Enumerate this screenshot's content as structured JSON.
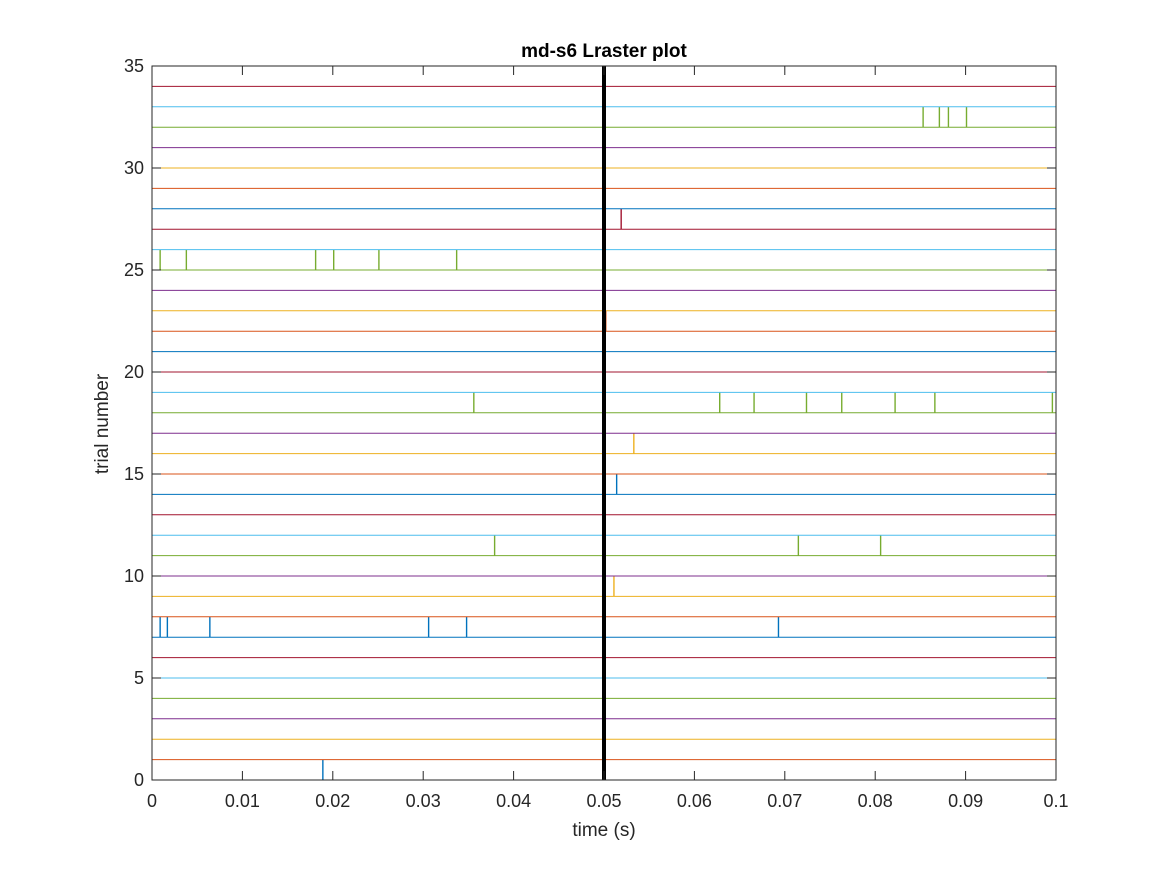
{
  "chart_data": {
    "type": "raster",
    "title": "md-s6 Lraster plot",
    "xlabel": "time (s)",
    "ylabel": "trial number",
    "xlim": [
      0,
      0.1
    ],
    "ylim": [
      0,
      35
    ],
    "xticks": [
      0,
      0.01,
      0.02,
      0.03,
      0.04,
      0.05,
      0.06,
      0.07,
      0.08,
      0.09,
      0.1
    ],
    "xtick_labels": [
      "0",
      "0.01",
      "0.02",
      "0.03",
      "0.04",
      "0.05",
      "0.06",
      "0.07",
      "0.08",
      "0.09",
      "0.1"
    ],
    "yticks": [
      0,
      5,
      10,
      15,
      20,
      25,
      30,
      35
    ],
    "ytick_labels": [
      "0",
      "5",
      "10",
      "15",
      "20",
      "25",
      "30",
      "35"
    ],
    "event_marker_x": 0.05,
    "grid": false,
    "color_cycle": [
      "#0072BD",
      "#D95319",
      "#EDB120",
      "#7E2F8E",
      "#77AC30",
      "#4DBEEE",
      "#A2142F"
    ],
    "spike_height": 1,
    "trials": [
      {
        "trial": 0,
        "spikes": [
          0.0189
        ]
      },
      {
        "trial": 1,
        "spikes": []
      },
      {
        "trial": 2,
        "spikes": []
      },
      {
        "trial": 3,
        "spikes": []
      },
      {
        "trial": 4,
        "spikes": []
      },
      {
        "trial": 5,
        "spikes": []
      },
      {
        "trial": 6,
        "spikes": []
      },
      {
        "trial": 7,
        "spikes": [
          0.0009,
          0.0017,
          0.0064,
          0.0306,
          0.0348,
          0.0693
        ]
      },
      {
        "trial": 8,
        "spikes": []
      },
      {
        "trial": 9,
        "spikes": [
          0.0511
        ]
      },
      {
        "trial": 10,
        "spikes": []
      },
      {
        "trial": 11,
        "spikes": [
          0.0379,
          0.0715,
          0.0806
        ]
      },
      {
        "trial": 12,
        "spikes": []
      },
      {
        "trial": 13,
        "spikes": []
      },
      {
        "trial": 14,
        "spikes": [
          0.0514
        ]
      },
      {
        "trial": 15,
        "spikes": []
      },
      {
        "trial": 16,
        "spikes": [
          0.0533
        ]
      },
      {
        "trial": 17,
        "spikes": []
      },
      {
        "trial": 18,
        "spikes": [
          0.0356,
          0.0628,
          0.0666,
          0.0724,
          0.0763,
          0.0822,
          0.0866,
          0.0996
        ]
      },
      {
        "trial": 19,
        "spikes": []
      },
      {
        "trial": 20,
        "spikes": []
      },
      {
        "trial": 21,
        "spikes": []
      },
      {
        "trial": 22,
        "spikes": [
          0.0502
        ]
      },
      {
        "trial": 23,
        "spikes": []
      },
      {
        "trial": 24,
        "spikes": []
      },
      {
        "trial": 25,
        "spikes": [
          0.0009,
          0.0038,
          0.0181,
          0.0201,
          0.0251,
          0.0337
        ]
      },
      {
        "trial": 26,
        "spikes": []
      },
      {
        "trial": 27,
        "spikes": [
          0.0519
        ]
      },
      {
        "trial": 28,
        "spikes": []
      },
      {
        "trial": 29,
        "spikes": []
      },
      {
        "trial": 30,
        "spikes": []
      },
      {
        "trial": 31,
        "spikes": []
      },
      {
        "trial": 32,
        "spikes": [
          0.0853,
          0.0871,
          0.0881,
          0.0901
        ]
      },
      {
        "trial": 33,
        "spikes": []
      },
      {
        "trial": 34,
        "spikes": []
      }
    ]
  }
}
